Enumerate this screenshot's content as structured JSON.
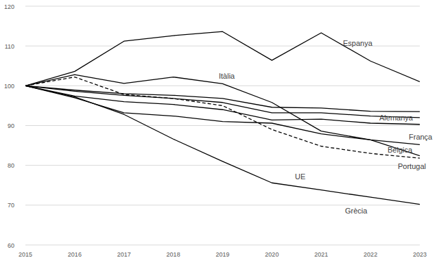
{
  "chart_data": {
    "type": "line",
    "x": [
      2015,
      2016,
      2017,
      2018,
      2019,
      2020,
      2021,
      2022,
      2023
    ],
    "xlim": [
      2015,
      2023
    ],
    "xticks": [
      2015,
      2016,
      2017,
      2018,
      2019,
      2020,
      2021,
      2022,
      2023
    ],
    "ylim": [
      60,
      120
    ],
    "yticks": [
      60,
      70,
      80,
      90,
      100,
      110,
      120
    ],
    "grid": true,
    "series": [
      {
        "name": "Espanya",
        "color": "#000000",
        "line_style": "solid",
        "values": [
          100,
          103.6,
          111.2,
          112.6,
          113.6,
          106.4,
          113.3,
          106.2,
          101.0
        ]
      },
      {
        "name": "Itàlia",
        "color": "#000000",
        "line_style": "solid",
        "values": [
          100,
          102.8,
          100.6,
          102.2,
          100.5,
          95.8,
          88.6,
          86.4,
          82.4
        ]
      },
      {
        "name": "Alemanya",
        "color": "#000000",
        "line_style": "solid",
        "values": [
          100,
          98.9,
          98.0,
          97.6,
          96.8,
          94.6,
          94.4,
          93.6,
          93.5
        ]
      },
      {
        "name": "França",
        "color": "#000000",
        "line_style": "solid",
        "values": [
          100,
          98.6,
          97.6,
          96.8,
          95.8,
          93.2,
          93.2,
          92.4,
          92.0
        ]
      },
      {
        "name": "Bèlgica",
        "color": "#000000",
        "line_style": "solid",
        "values": [
          100,
          97.4,
          96.0,
          95.3,
          94.0,
          91.4,
          91.6,
          90.6,
          90.3
        ]
      },
      {
        "name": "Portugal",
        "color": "#000000",
        "line_style": "solid",
        "values": [
          100,
          97.0,
          93.2,
          92.4,
          91.0,
          90.6,
          87.9,
          86.4,
          85.2
        ]
      },
      {
        "name": "UE",
        "color": "#000000",
        "line_style": "dashed",
        "values": [
          100,
          102.2,
          97.8,
          96.8,
          95.0,
          89.0,
          84.8,
          83.0,
          81.8
        ]
      },
      {
        "name": "Grècia",
        "color": "#000000",
        "line_style": "solid",
        "values": [
          100,
          97.2,
          92.8,
          86.6,
          81.0,
          75.6,
          73.8,
          72.0,
          70.2
        ]
      }
    ]
  }
}
